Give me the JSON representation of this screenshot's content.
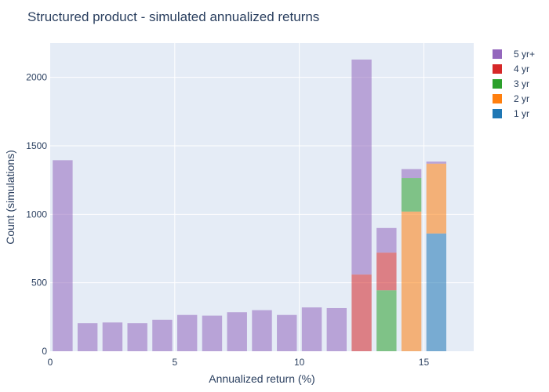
{
  "chart_data": {
    "type": "bar",
    "barmode": "stack",
    "title": "Structured product - simulated annualized returns",
    "xlabel": "Annualized return (%)",
    "ylabel": "Count (simulations)",
    "xlim": [
      0,
      17
    ],
    "ylim": [
      0,
      2250
    ],
    "xticks": [
      0,
      5,
      10,
      15
    ],
    "yticks": [
      0,
      500,
      1000,
      1500,
      2000
    ],
    "grid": true,
    "legend_position": "right",
    "bins": [
      {
        "x0": 0,
        "x1": 1
      },
      {
        "x0": 1,
        "x1": 2
      },
      {
        "x0": 2,
        "x1": 3
      },
      {
        "x0": 3,
        "x1": 4
      },
      {
        "x0": 4,
        "x1": 5
      },
      {
        "x0": 5,
        "x1": 6
      },
      {
        "x0": 6,
        "x1": 7
      },
      {
        "x0": 7,
        "x1": 8
      },
      {
        "x0": 8,
        "x1": 9
      },
      {
        "x0": 9,
        "x1": 10
      },
      {
        "x0": 10,
        "x1": 11
      },
      {
        "x0": 11,
        "x1": 12
      },
      {
        "x0": 12,
        "x1": 13
      },
      {
        "x0": 13,
        "x1": 14
      },
      {
        "x0": 14,
        "x1": 15
      },
      {
        "x0": 15,
        "x1": 16
      }
    ],
    "series": [
      {
        "name": "1 yr",
        "color": "#1f77b4",
        "values": [
          0,
          0,
          0,
          0,
          0,
          0,
          0,
          0,
          0,
          0,
          0,
          0,
          0,
          0,
          0,
          860
        ]
      },
      {
        "name": "2 yr",
        "color": "#ff7f0e",
        "values": [
          0,
          0,
          0,
          0,
          0,
          0,
          0,
          0,
          0,
          0,
          0,
          0,
          0,
          0,
          1020,
          510
        ]
      },
      {
        "name": "3 yr",
        "color": "#2ca02c",
        "values": [
          0,
          0,
          0,
          0,
          0,
          0,
          0,
          0,
          0,
          0,
          0,
          0,
          0,
          445,
          245,
          0
        ]
      },
      {
        "name": "4 yr",
        "color": "#d62728",
        "values": [
          0,
          0,
          0,
          0,
          0,
          0,
          0,
          0,
          0,
          0,
          0,
          0,
          560,
          275,
          0,
          0
        ]
      },
      {
        "name": "5 yr+",
        "color": "#9467bd",
        "values": [
          1395,
          205,
          210,
          205,
          230,
          265,
          260,
          285,
          300,
          265,
          320,
          315,
          1570,
          180,
          65,
          15
        ]
      }
    ],
    "legend_order": [
      "5 yr+",
      "4 yr",
      "3 yr",
      "2 yr",
      "1 yr"
    ]
  }
}
